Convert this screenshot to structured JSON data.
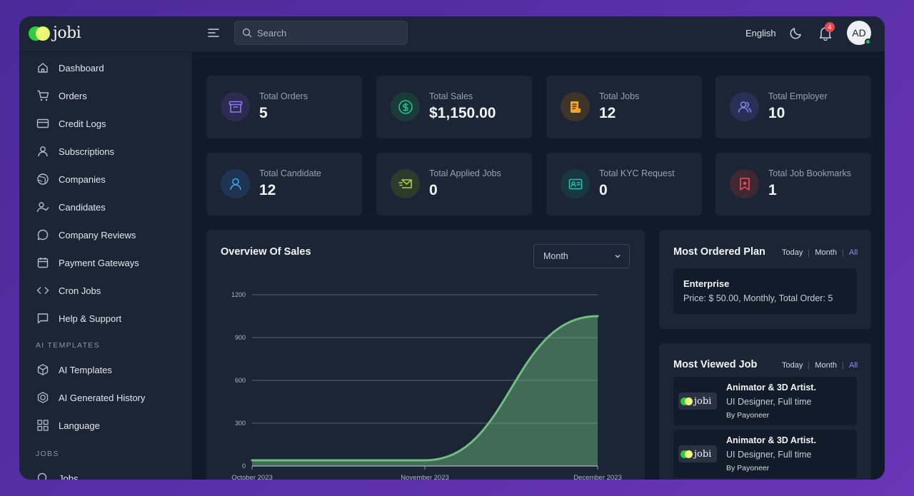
{
  "brand": {
    "name": "jobi"
  },
  "header": {
    "search_placeholder": "Search",
    "language": "English",
    "notifications_count": "4",
    "avatar_initials": "AD"
  },
  "sidebar": {
    "items": [
      {
        "label": "Dashboard",
        "icon": "home-icon"
      },
      {
        "label": "Orders",
        "icon": "cart-icon"
      },
      {
        "label": "Credit Logs",
        "icon": "credit-card-icon"
      },
      {
        "label": "Subscriptions",
        "icon": "user-icon"
      },
      {
        "label": "Companies",
        "icon": "globe-icon"
      },
      {
        "label": "Candidates",
        "icon": "user-check-icon"
      },
      {
        "label": "Company Reviews",
        "icon": "message-circle-icon"
      },
      {
        "label": "Payment Gateways",
        "icon": "calendar-icon"
      },
      {
        "label": "Cron Jobs",
        "icon": "code-icon"
      },
      {
        "label": "Help & Support",
        "icon": "message-square-icon"
      }
    ],
    "ai_section_title": "AI TEMPLATES",
    "ai_items": [
      {
        "label": "AI Templates",
        "icon": "box-icon"
      },
      {
        "label": "AI Generated History",
        "icon": "cube-network-icon"
      },
      {
        "label": "Language",
        "icon": "grid-icon"
      }
    ],
    "jobs_section_title": "JOBS",
    "jobs_items": [
      {
        "label": "Jobs",
        "icon": "search-icon"
      }
    ]
  },
  "stats": [
    {
      "label": "Total Orders",
      "value": "5",
      "icon": "archive-box-icon",
      "color": "#8b7cf6",
      "bg": "#2d2b50"
    },
    {
      "label": "Total Sales",
      "value": "$1,150.00",
      "icon": "dollar-circle-icon",
      "color": "#22c28a",
      "bg": "#1b3a3a"
    },
    {
      "label": "Total Jobs",
      "value": "12",
      "icon": "document-icon",
      "color": "#f5a524",
      "bg": "#3f3428"
    },
    {
      "label": "Total Employer",
      "value": "10",
      "icon": "users-icon",
      "color": "#7d86f0",
      "bg": "#2a2f55"
    },
    {
      "label": "Total Candidate",
      "value": "12",
      "icon": "user-icon",
      "color": "#3ba6e8",
      "bg": "#1d3552"
    },
    {
      "label": "Total Applied Jobs",
      "value": "0",
      "icon": "mail-send-icon",
      "color": "#a3d14a",
      "bg": "#2e3a2b"
    },
    {
      "label": "Total KYC Request",
      "value": "0",
      "icon": "id-card-icon",
      "color": "#20c2b5",
      "bg": "#17383e"
    },
    {
      "label": "Total Job Bookmarks",
      "value": "1",
      "icon": "bookmark-icon",
      "color": "#ef4d5c",
      "bg": "#3f2832"
    }
  ],
  "overview": {
    "title": "Overview Of Sales",
    "period_select": "Month"
  },
  "chart_data": {
    "type": "area",
    "title": "Overview Of Sales",
    "x": [
      "October 2023",
      "November 2023",
      "December 2023"
    ],
    "series": [
      {
        "values": [
          40,
          40,
          1050
        ]
      }
    ],
    "ylim": [
      0,
      1200
    ],
    "yticks": [
      "0",
      "300",
      "600",
      "900",
      "1200"
    ],
    "grid": true,
    "color": "#6fbf80"
  },
  "most_ordered_plan": {
    "title": "Most Ordered Plan",
    "filters": [
      "Today",
      "Month",
      "All"
    ],
    "active_filter": "All",
    "plan": {
      "name": "Enterprise",
      "detail": "Price: $ 50.00, Monthly, Total Order: 5"
    }
  },
  "most_viewed_job": {
    "title": "Most Viewed Job",
    "filters": [
      "Today",
      "Month",
      "All"
    ],
    "active_filter": "All",
    "jobs": [
      {
        "title": "Animator & 3D Artist.",
        "subtitle": "UI Designer, Full time",
        "by": "By Payoneer",
        "logo_text": "jobi"
      },
      {
        "title": "Animator & 3D Artist.",
        "subtitle": "UI Designer, Full time",
        "by": "By Payoneer",
        "logo_text": "jobi"
      }
    ]
  }
}
